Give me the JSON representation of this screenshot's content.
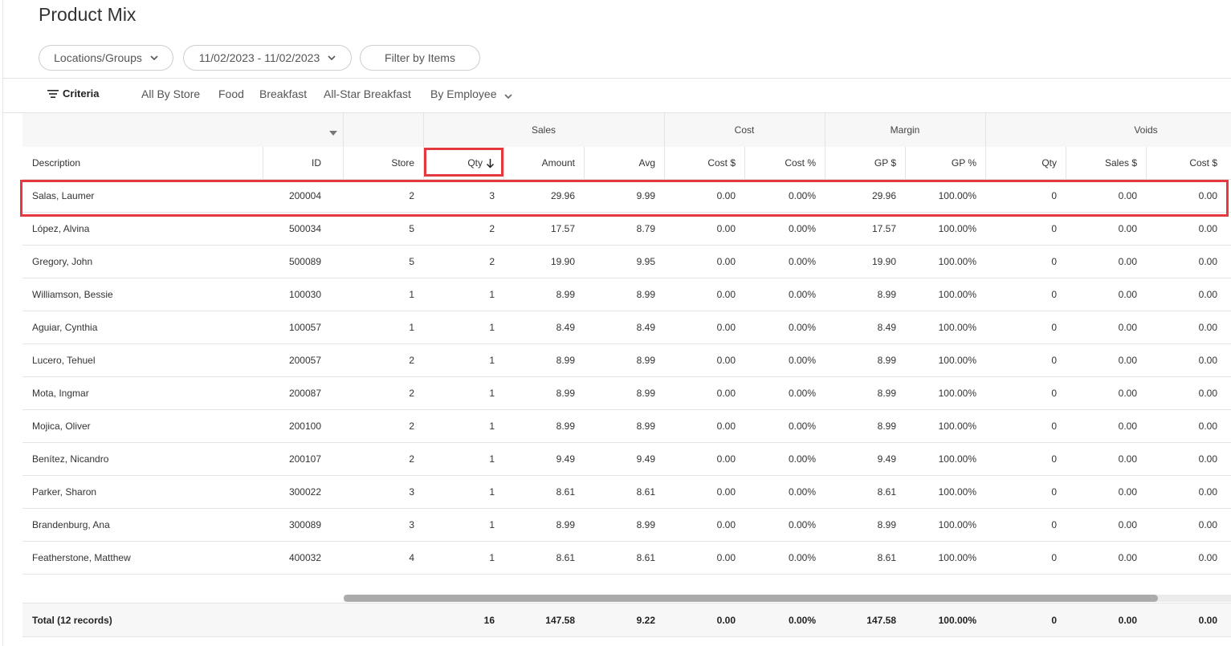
{
  "page": {
    "title": "Product Mix"
  },
  "filters": {
    "locations_label": "Locations/Groups",
    "date_range_label": "11/02/2023 - 11/02/2023",
    "filter_items_label": "Filter by Items"
  },
  "criteria": {
    "label": "Criteria",
    "tabs": [
      "All By Store",
      "Food",
      "Breakfast",
      "All-Star Breakfast",
      "By Employee"
    ]
  },
  "table": {
    "groups": {
      "sales": "Sales",
      "cost": "Cost",
      "margin": "Margin",
      "voids": "Voids"
    },
    "columns": [
      "Description",
      "ID",
      "Store",
      "Qty",
      "Amount",
      "Avg",
      "Cost $",
      "Cost %",
      "GP $",
      "GP %",
      "Qty",
      "Sales $",
      "Cost $"
    ],
    "sorted_column": "Qty",
    "rows": [
      [
        "Salas, Laumer",
        "200004",
        "2",
        "3",
        "29.96",
        "9.99",
        "0.00",
        "0.00%",
        "29.96",
        "100.00%",
        "0",
        "0.00",
        "0.00"
      ],
      [
        "López, Alvina",
        "500034",
        "5",
        "2",
        "17.57",
        "8.79",
        "0.00",
        "0.00%",
        "17.57",
        "100.00%",
        "0",
        "0.00",
        "0.00"
      ],
      [
        "Gregory, John",
        "500089",
        "5",
        "2",
        "19.90",
        "9.95",
        "0.00",
        "0.00%",
        "19.90",
        "100.00%",
        "0",
        "0.00",
        "0.00"
      ],
      [
        "Williamson, Bessie",
        "100030",
        "1",
        "1",
        "8.99",
        "8.99",
        "0.00",
        "0.00%",
        "8.99",
        "100.00%",
        "0",
        "0.00",
        "0.00"
      ],
      [
        "Aguiar, Cynthia",
        "100057",
        "1",
        "1",
        "8.49",
        "8.49",
        "0.00",
        "0.00%",
        "8.49",
        "100.00%",
        "0",
        "0.00",
        "0.00"
      ],
      [
        "Lucero, Tehuel",
        "200057",
        "2",
        "1",
        "8.99",
        "8.99",
        "0.00",
        "0.00%",
        "8.99",
        "100.00%",
        "0",
        "0.00",
        "0.00"
      ],
      [
        "Mota, Ingmar",
        "200087",
        "2",
        "1",
        "8.99",
        "8.99",
        "0.00",
        "0.00%",
        "8.99",
        "100.00%",
        "0",
        "0.00",
        "0.00"
      ],
      [
        "Mojica, Oliver",
        "200100",
        "2",
        "1",
        "8.99",
        "8.99",
        "0.00",
        "0.00%",
        "8.99",
        "100.00%",
        "0",
        "0.00",
        "0.00"
      ],
      [
        "Benítez, Nicandro",
        "200107",
        "2",
        "1",
        "9.49",
        "9.49",
        "0.00",
        "0.00%",
        "9.49",
        "100.00%",
        "0",
        "0.00",
        "0.00"
      ],
      [
        "Parker, Sharon",
        "300022",
        "3",
        "1",
        "8.61",
        "8.61",
        "0.00",
        "0.00%",
        "8.61",
        "100.00%",
        "0",
        "0.00",
        "0.00"
      ],
      [
        "Brandenburg, Ana",
        "300089",
        "3",
        "1",
        "8.99",
        "8.99",
        "0.00",
        "0.00%",
        "8.99",
        "100.00%",
        "0",
        "0.00",
        "0.00"
      ],
      [
        "Featherstone, Matthew",
        "400032",
        "4",
        "1",
        "8.61",
        "8.61",
        "0.00",
        "0.00%",
        "8.61",
        "100.00%",
        "0",
        "0.00",
        "0.00"
      ]
    ],
    "total": [
      "Total (12 records)",
      "",
      "",
      "16",
      "147.58",
      "9.22",
      "0.00",
      "0.00%",
      "147.58",
      "100.00%",
      "0",
      "0.00",
      "0.00"
    ]
  },
  "colors": {
    "highlight": "#e53940",
    "scroll_thumb": "#ababab"
  }
}
